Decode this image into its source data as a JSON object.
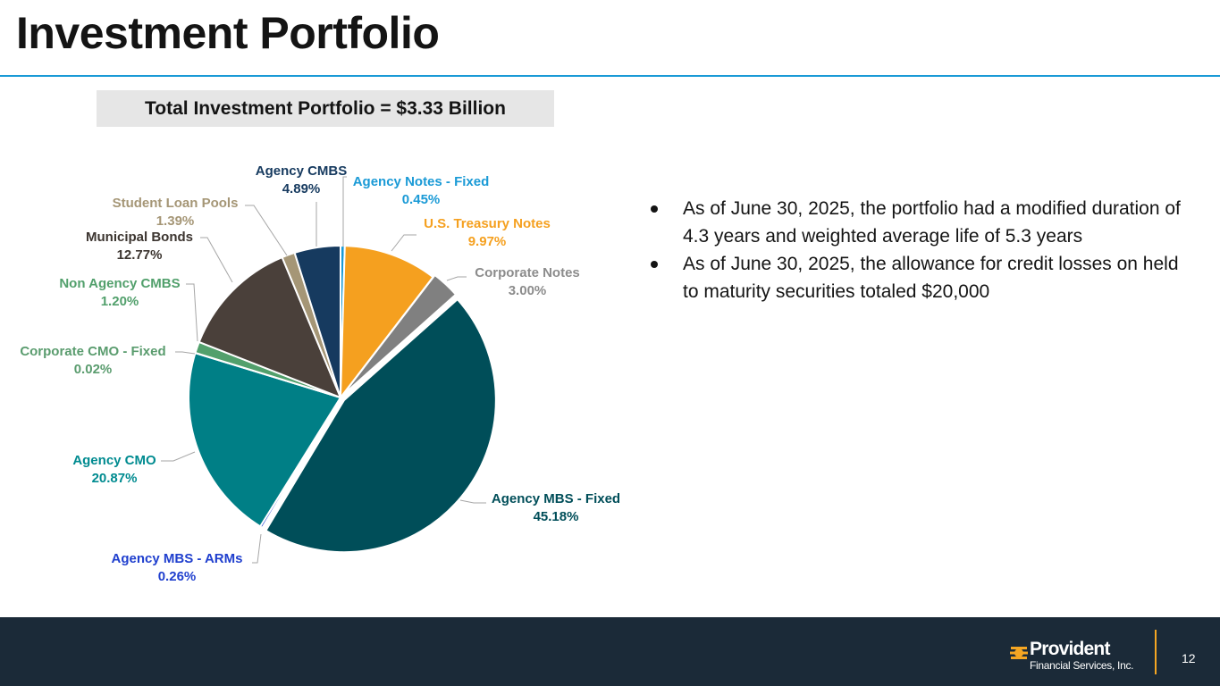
{
  "page": {
    "title": "Investment Portfolio",
    "total_banner": "Total Investment Portfolio = $3.33 Billion",
    "page_number": "12"
  },
  "bullets": [
    "As of June 30, 2025, the portfolio had a modified duration of 4.3 years and weighted average life of 5.3 years",
    "As of June 30, 2025, the allowance for credit losses on held to maturity securities totaled $20,000"
  ],
  "logo": {
    "name": "Provident",
    "subtitle": "Financial Services, Inc."
  },
  "chart_data": {
    "type": "pie",
    "title": "",
    "unit": "%",
    "slices": [
      {
        "name": "Agency Notes - Fixed",
        "value": 0.45,
        "label": "0.45%",
        "color": "#1a9ad6"
      },
      {
        "name": "U.S. Treasury Notes",
        "value": 9.97,
        "label": "9.97%",
        "color": "#f5a01f"
      },
      {
        "name": "Corporate Notes",
        "value": 3.0,
        "label": "3.00%",
        "color": "#808080"
      },
      {
        "name": "Agency MBS - Fixed",
        "value": 45.18,
        "label": "45.18%",
        "color": "#004e59"
      },
      {
        "name": "Agency MBS - ARMs",
        "value": 0.26,
        "label": "0.26%",
        "color": "#1f3fce"
      },
      {
        "name": "Agency CMO",
        "value": 20.87,
        "label": "20.87%",
        "color": "#007f86"
      },
      {
        "name": "Corporate CMO - Fixed",
        "value": 0.02,
        "label": "0.02%",
        "color": "#5a9c6e"
      },
      {
        "name": "Non Agency CMBS",
        "value": 1.2,
        "label": "1.20%",
        "color": "#52a06c"
      },
      {
        "name": "Municipal Bonds",
        "value": 12.77,
        "label": "12.77%",
        "color": "#4a403a"
      },
      {
        "name": "Student Loan Pools",
        "value": 1.39,
        "label": "1.39%",
        "color": "#a59676"
      },
      {
        "name": "Agency CMBS",
        "value": 4.89,
        "label": "4.89%",
        "color": "#163a5f"
      }
    ],
    "label_colors": {
      "Agency Notes - Fixed": "#1a9ad6",
      "U.S. Treasury Notes": "#f5a01f",
      "Corporate Notes": "#8c8c8c",
      "Agency MBS - Fixed": "#004e59",
      "Agency MBS - ARMs": "#1f3fce",
      "Agency CMO": "#008b90",
      "Corporate CMO - Fixed": "#5a9c6e",
      "Non Agency CMBS": "#52a06c",
      "Municipal Bonds": "#3c3530",
      "Student Loan Pools": "#a59676",
      "Agency CMBS": "#163a5f"
    }
  }
}
